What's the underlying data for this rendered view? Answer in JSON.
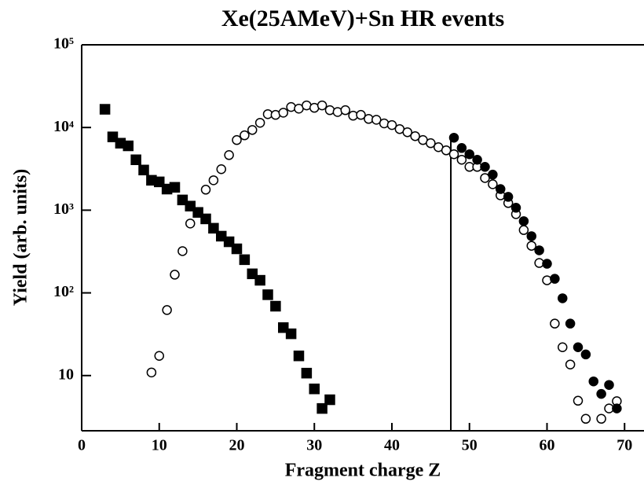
{
  "chart_data": {
    "type": "scatter",
    "title": "Xe(25AMeV)+Sn HR events",
    "x_label": "Fragment charge Z",
    "y_label": "Yield (arb. units)",
    "log_y": true,
    "xlim": [
      0,
      72
    ],
    "ylim": [
      2.15,
      100000
    ],
    "xticks": [
      0,
      10,
      20,
      30,
      40,
      50,
      60,
      70
    ],
    "yticks": [
      {
        "value": 10,
        "label": "10"
      },
      {
        "value": 100,
        "label": "10²"
      },
      {
        "value": 1000,
        "label": "10³"
      },
      {
        "value": 10000,
        "label": "10⁴"
      },
      {
        "value": 100000,
        "label": "10⁵"
      }
    ],
    "vline_x": 47.6,
    "series": [
      {
        "marker": "square",
        "filled": true,
        "color": "#000000",
        "x": [
          3,
          4,
          5,
          6,
          7,
          8,
          9,
          10,
          11,
          12,
          13,
          14,
          15,
          16,
          17,
          18,
          19,
          20,
          21,
          22,
          23,
          24,
          25,
          26,
          27,
          28,
          29,
          30,
          31,
          32
        ],
        "values": [
          16600,
          7700,
          6460,
          6000,
          4070,
          3060,
          2300,
          2200,
          1800,
          1890,
          1330,
          1120,
          940,
          785,
          605,
          485,
          415,
          341,
          252,
          170,
          142,
          95,
          69,
          38,
          32,
          17.3,
          10.7,
          6.9,
          4.0,
          5.1
        ]
      },
      {
        "marker": "circle",
        "filled": false,
        "color": "#000000",
        "x": [
          9,
          10,
          11,
          12,
          13,
          14,
          16,
          17,
          18,
          19,
          20,
          21,
          22,
          23,
          24,
          25,
          26,
          27,
          28,
          29,
          30,
          31,
          32,
          33,
          34,
          35,
          36,
          37,
          38,
          39,
          40,
          41,
          42,
          43,
          44,
          45,
          46,
          47,
          48,
          49,
          50,
          51,
          52,
          53,
          54,
          55,
          56,
          57,
          58,
          59,
          60,
          61,
          62,
          63,
          64,
          65,
          67,
          68,
          69
        ],
        "values": [
          10.9,
          17.3,
          62,
          166,
          320,
          690,
          1770,
          2300,
          3130,
          4640,
          7050,
          8040,
          9340,
          11400,
          14500,
          14200,
          15100,
          17700,
          16900,
          18500,
          17300,
          18500,
          16200,
          15400,
          16200,
          13900,
          14200,
          12700,
          12400,
          11200,
          10700,
          9570,
          8770,
          7860,
          7050,
          6460,
          5780,
          5290,
          4750,
          4070,
          3340,
          3340,
          2450,
          2060,
          1510,
          1220,
          896,
          575,
          371,
          230,
          142,
          42.5,
          22,
          13.6,
          4.96,
          3.0,
          3.0,
          4.0,
          4.9
        ]
      },
      {
        "marker": "circle",
        "filled": true,
        "color": "#000000",
        "x": [
          48,
          49,
          50,
          51,
          52,
          53,
          54,
          55,
          56,
          57,
          58,
          59,
          60,
          61,
          62,
          63,
          64,
          65,
          66,
          67,
          68,
          69
        ],
        "values": [
          7520,
          5650,
          4750,
          4070,
          3340,
          2690,
          1800,
          1450,
          1070,
          737,
          485,
          327,
          225,
          148,
          86,
          42.5,
          22,
          18,
          8.5,
          6.0,
          7.7,
          4.0
        ]
      }
    ]
  }
}
